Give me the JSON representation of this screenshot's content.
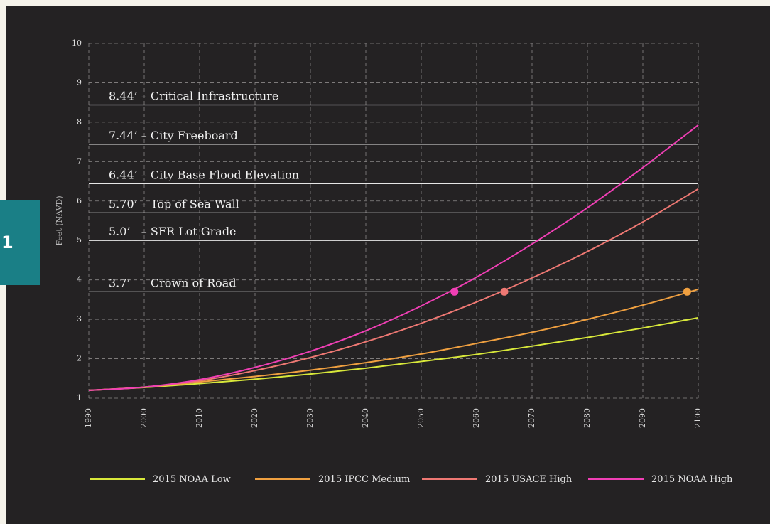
{
  "badge": {
    "label": "1"
  },
  "chart_data": {
    "type": "line",
    "ylabel": "Feet (NAVD)",
    "xlabel": "",
    "xlim": [
      1990,
      2100
    ],
    "ylim": [
      1,
      10
    ],
    "x_ticks": [
      "1990",
      "2000",
      "2010",
      "2020",
      "2030",
      "2040",
      "2050",
      "2060",
      "2070",
      "2080",
      "2090",
      "2100"
    ],
    "y_ticks": [
      "1",
      "2",
      "3",
      "4",
      "5",
      "6",
      "7",
      "8",
      "9",
      "10"
    ],
    "grid": true,
    "legend_position": "bottom",
    "x": [
      1990,
      2000,
      2010,
      2020,
      2030,
      2040,
      2050,
      2060,
      2070,
      2080,
      2090,
      2100
    ],
    "series": [
      {
        "name": "2015 NOAA Low",
        "color": "#d8e83a",
        "values": [
          1.2,
          1.27,
          1.37,
          1.48,
          1.61,
          1.76,
          1.93,
          2.11,
          2.32,
          2.54,
          2.78,
          3.04
        ]
      },
      {
        "name": "2015 IPCC Medium",
        "color": "#f0a040",
        "values": [
          1.2,
          1.28,
          1.41,
          1.55,
          1.71,
          1.9,
          2.12,
          2.39,
          2.67,
          3.0,
          3.36,
          3.76
        ]
      },
      {
        "name": "2015 USACE High",
        "color": "#ee7873",
        "values": [
          1.2,
          1.28,
          1.44,
          1.7,
          2.03,
          2.43,
          2.9,
          3.44,
          4.05,
          4.72,
          5.47,
          6.31
        ]
      },
      {
        "name": "2015 NOAA High",
        "color": "#f03fb5",
        "values": [
          1.2,
          1.28,
          1.47,
          1.78,
          2.19,
          2.71,
          3.34,
          4.07,
          4.91,
          5.83,
          6.85,
          7.93
        ]
      }
    ],
    "thresholds": [
      {
        "value": 8.44,
        "label": "8.44’ – Critical Infrastructure"
      },
      {
        "value": 7.44,
        "label": "7.44’ – City Freeboard"
      },
      {
        "value": 6.44,
        "label": "6.44’ – City Base Flood Elevation"
      },
      {
        "value": 5.7,
        "label": "5.70’ – Top of Sea Wall"
      },
      {
        "value": 5.0,
        "label": "5.0’   – SFR Lot Grade"
      },
      {
        "value": 3.7,
        "label": "3.7’   – Crown of Road"
      }
    ],
    "markers": [
      {
        "series": "2015 NOAA High",
        "x": 2056,
        "y": 3.7,
        "color": "#f03fb5"
      },
      {
        "series": "2015 USACE High",
        "x": 2065,
        "y": 3.7,
        "color": "#ee7873"
      },
      {
        "series": "2015 IPCC Medium",
        "x": 2098,
        "y": 3.7,
        "color": "#f0a040"
      }
    ]
  }
}
